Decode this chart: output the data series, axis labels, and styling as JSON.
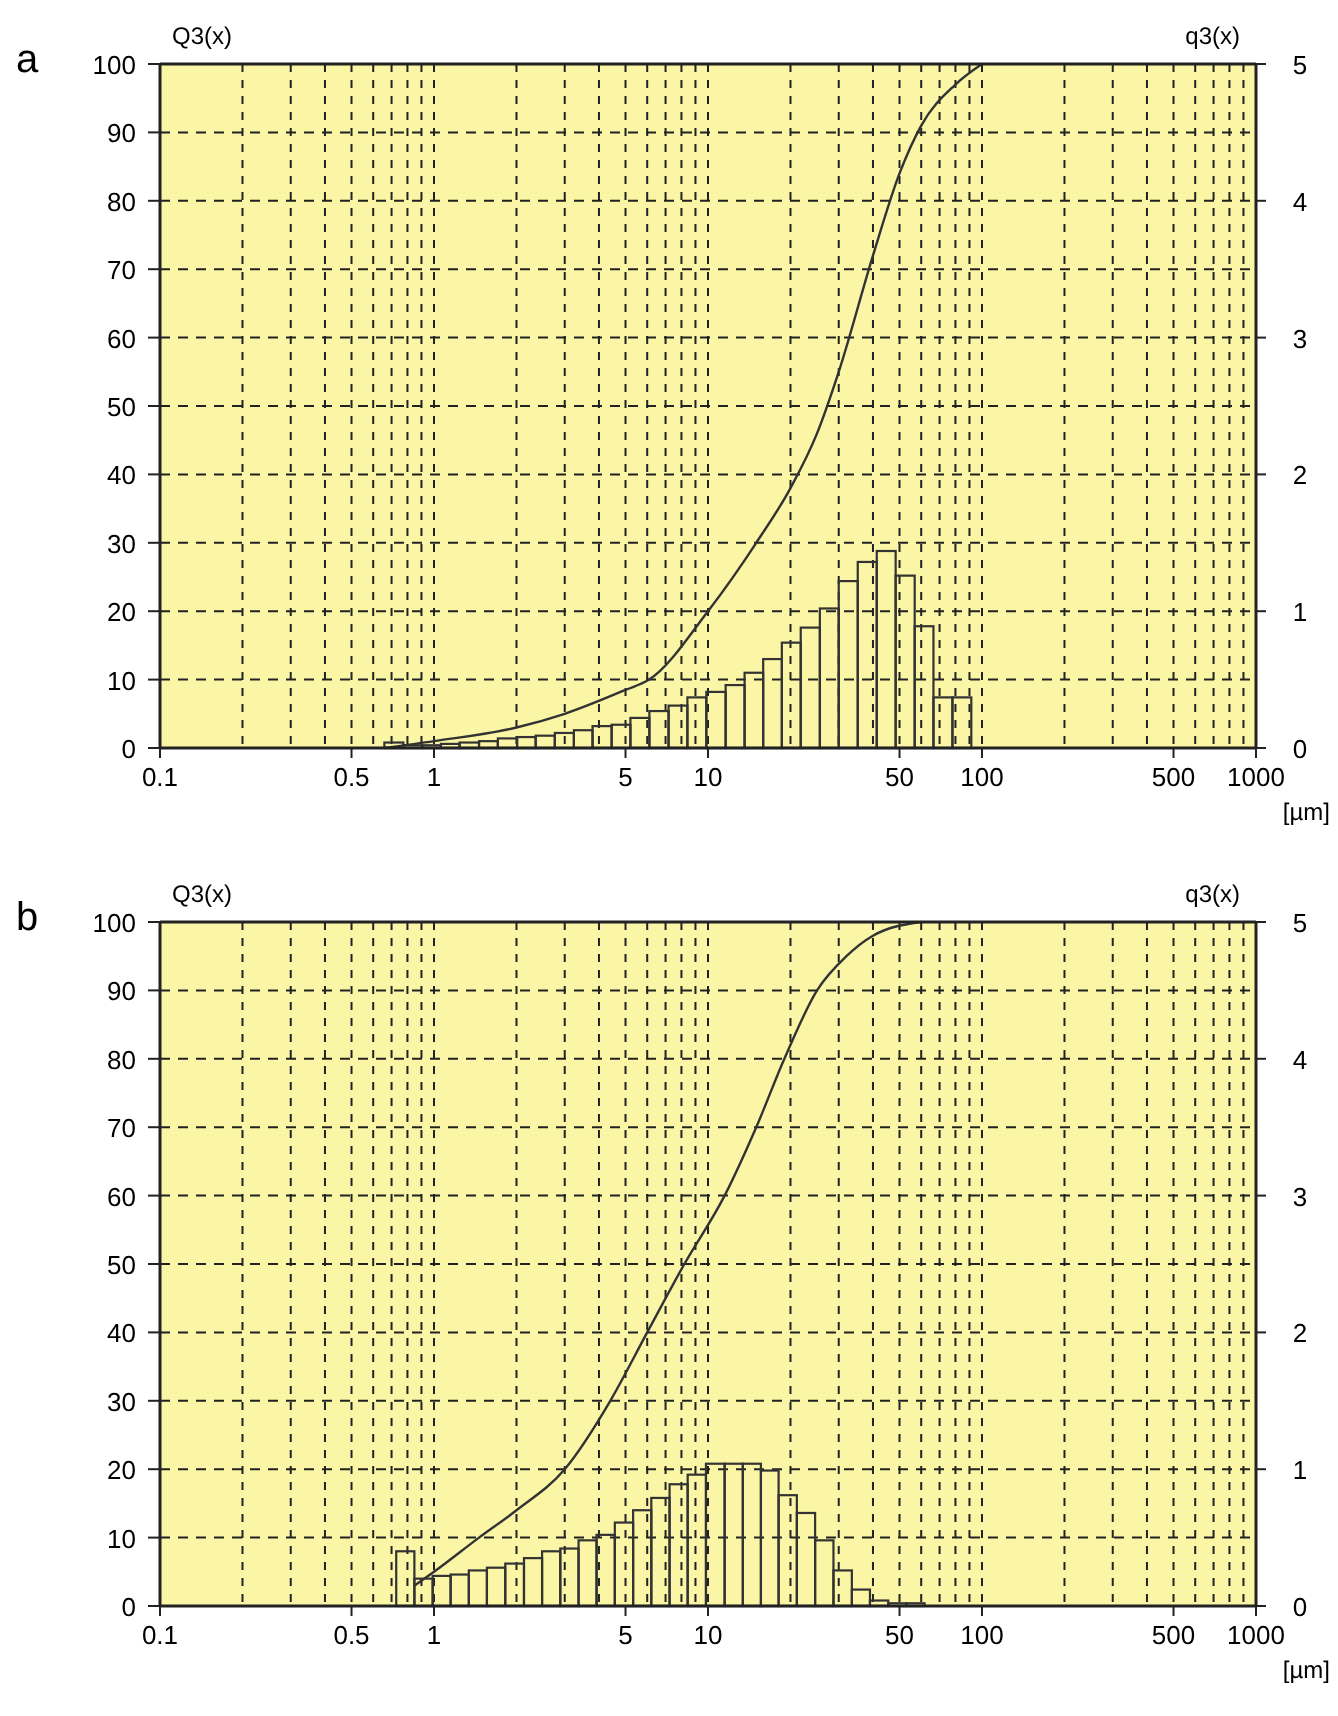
{
  "chart_data": [
    {
      "type": "histogram",
      "title": "a",
      "xlabel": "[µm]",
      "ylabel": "Q3(x)",
      "y2label": "q3(x)",
      "log": "x",
      "grid": true,
      "xlim": [
        0.1,
        1000
      ],
      "xticks": [
        0.1,
        {
          "value": 0.2,
          "label": null
        },
        {
          "value": 0.3,
          "label": null
        },
        {
          "value": 0.4,
          "label": null
        },
        0.5,
        {
          "value": 0.6,
          "label": null
        },
        {
          "value": 0.7,
          "label": null
        },
        {
          "value": 0.8,
          "label": null
        },
        {
          "value": 0.9,
          "label": null
        },
        1,
        {
          "value": 2,
          "label": null
        },
        {
          "value": 3,
          "label": null
        },
        {
          "value": 4,
          "label": null
        },
        5,
        {
          "value": 6,
          "label": null
        },
        {
          "value": 7,
          "label": null
        },
        {
          "value": 8,
          "label": null
        },
        {
          "value": 9,
          "label": null
        },
        10,
        {
          "value": 20,
          "label": null
        },
        {
          "value": 30,
          "label": null
        },
        {
          "value": 40,
          "label": null
        },
        50,
        {
          "value": 60,
          "label": null
        },
        {
          "value": 70,
          "label": null
        },
        {
          "value": 80,
          "label": null
        },
        {
          "value": 90,
          "label": null
        },
        100,
        {
          "value": 200,
          "label": null
        },
        {
          "value": 300,
          "label": null
        },
        {
          "value": 400,
          "label": null
        },
        500,
        {
          "value": 600,
          "label": null
        },
        {
          "value": 700,
          "label": null
        },
        {
          "value": 800,
          "label": null
        },
        {
          "value": 900,
          "label": null
        },
        1000
      ],
      "ylim": [
        0,
        100
      ],
      "yticks": [
        0,
        10,
        20,
        30,
        40,
        50,
        60,
        70,
        80,
        90,
        100
      ],
      "y2lim": [
        0,
        5
      ],
      "y2ticks": [
        0,
        1,
        2,
        3,
        4,
        5
      ],
      "series": [
        {
          "axis": "y2",
          "color": "#333333",
          "bins": [
            0.659,
            0.773,
            0.906,
            1.06,
            1.24,
            1.46,
            1.71,
            2.01,
            2.35,
            2.76,
            3.24,
            3.79,
            4.45,
            5.21,
            6.11,
            7.18,
            8.41,
            9.86,
            11.6,
            13.6,
            15.9,
            18.6,
            21.8,
            25.6,
            30.0,
            35.2,
            41.3,
            48.4,
            56.8,
            66.5,
            78.0,
            91.4
          ],
          "values": [
            0.04,
            0.02,
            0.02,
            0.03,
            0.04,
            0.05,
            0.07,
            0.08,
            0.09,
            0.11,
            0.13,
            0.16,
            0.17,
            0.22,
            0.27,
            0.31,
            0.37,
            0.41,
            0.46,
            0.55,
            0.65,
            0.77,
            0.88,
            1.02,
            1.22,
            1.36,
            1.44,
            1.26,
            0.89,
            0.37,
            0.37
          ]
        },
        {
          "type": "line",
          "axis": "y",
          "color": "#333333",
          "x": [
            0.66,
            1,
            2,
            3,
            5,
            6.1,
            10,
            15,
            20,
            25,
            30,
            40,
            50,
            60,
            80,
            100
          ],
          "values": [
            0,
            1,
            3,
            5,
            8.5,
            10,
            20,
            30,
            38,
            46,
            55,
            72,
            84,
            91,
            97,
            100
          ]
        }
      ]
    },
    {
      "type": "histogram",
      "title": "b",
      "xlabel": "[µm]",
      "ylabel": "Q3(x)",
      "y2label": "q3(x)",
      "log": "x",
      "grid": true,
      "xlim": [
        0.1,
        1000
      ],
      "xticks": [
        0.1,
        {
          "value": 0.2,
          "label": null
        },
        {
          "value": 0.3,
          "label": null
        },
        {
          "value": 0.4,
          "label": null
        },
        0.5,
        {
          "value": 0.6,
          "label": null
        },
        {
          "value": 0.7,
          "label": null
        },
        {
          "value": 0.8,
          "label": null
        },
        {
          "value": 0.9,
          "label": null
        },
        1,
        {
          "value": 2,
          "label": null
        },
        {
          "value": 3,
          "label": null
        },
        {
          "value": 4,
          "label": null
        },
        5,
        {
          "value": 6,
          "label": null
        },
        {
          "value": 7,
          "label": null
        },
        {
          "value": 8,
          "label": null
        },
        {
          "value": 9,
          "label": null
        },
        10,
        {
          "value": 20,
          "label": null
        },
        {
          "value": 30,
          "label": null
        },
        {
          "value": 40,
          "label": null
        },
        50,
        {
          "value": 60,
          "label": null
        },
        {
          "value": 70,
          "label": null
        },
        {
          "value": 80,
          "label": null
        },
        {
          "value": 90,
          "label": null
        },
        100,
        {
          "value": 200,
          "label": null
        },
        {
          "value": 300,
          "label": null
        },
        {
          "value": 400,
          "label": null
        },
        500,
        {
          "value": 600,
          "label": null
        },
        {
          "value": 700,
          "label": null
        },
        {
          "value": 800,
          "label": null
        },
        {
          "value": 900,
          "label": null
        },
        1000
      ],
      "ylim": [
        0,
        100
      ],
      "yticks": [
        0,
        10,
        20,
        30,
        40,
        50,
        60,
        70,
        80,
        90,
        100
      ],
      "y2lim": [
        0,
        5
      ],
      "y2ticks": [
        0,
        1,
        2,
        3,
        4,
        5
      ],
      "series": [
        {
          "axis": "y2",
          "color": "#333333",
          "bins": [
            0.728,
            0.848,
            0.989,
            1.15,
            1.34,
            1.56,
            1.82,
            2.13,
            2.48,
            2.89,
            3.37,
            3.92,
            4.57,
            5.33,
            6.21,
            7.24,
            8.43,
            9.83,
            11.5,
            13.4,
            15.6,
            18.1,
            21.1,
            24.6,
            28.7,
            33.5,
            39.0,
            45.5,
            53.0,
            61.7
          ],
          "values": [
            0.4,
            0.2,
            0.22,
            0.23,
            0.26,
            0.28,
            0.31,
            0.35,
            0.4,
            0.42,
            0.48,
            0.52,
            0.61,
            0.7,
            0.79,
            0.89,
            0.96,
            1.04,
            1.04,
            1.04,
            0.99,
            0.81,
            0.68,
            0.48,
            0.26,
            0.12,
            0.04,
            0.02,
            0.02
          ]
        },
        {
          "type": "line",
          "axis": "y",
          "color": "#333333",
          "x": [
            0.85,
            1,
            1.46,
            2,
            3,
            4.4,
            6,
            8.2,
            11.5,
            15,
            19,
            25,
            32,
            40,
            60
          ],
          "values": [
            3,
            5,
            10,
            14,
            20,
            30,
            40,
            50,
            60,
            70,
            80,
            90,
            95,
            98,
            100
          ]
        }
      ]
    }
  ]
}
